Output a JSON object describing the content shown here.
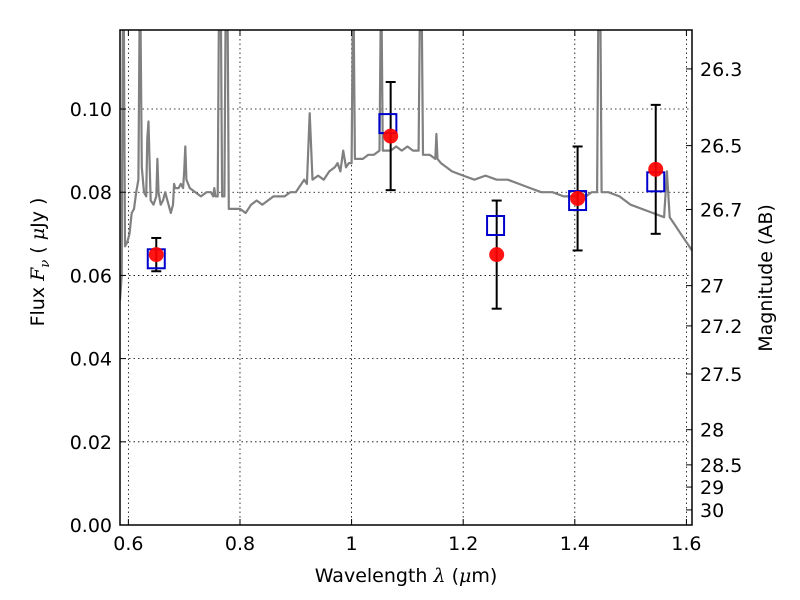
{
  "chart_data": {
    "type": "scatter",
    "xlabel_text": "Wavelength ",
    "xlabel_sym": "λ",
    "xlabel_unit_open": " (",
    "xlabel_unit_mu": "μ",
    "xlabel_unit_rest": "m)",
    "ylabel_text": "Flux ",
    "ylabel_sym": "F",
    "ylabel_sub": "ν",
    "ylabel_unit_open": " ( ",
    "ylabel_unit_mu": "μ",
    "ylabel_unit_rest": "Jy )",
    "y2label": "Magnitude (AB)",
    "xlim": [
      0.585,
      1.61
    ],
    "ylim": [
      0.0,
      0.119
    ],
    "grid": true,
    "x_ticks": [
      {
        "v": 0.6,
        "label": "0.6"
      },
      {
        "v": 0.8,
        "label": "0.8"
      },
      {
        "v": 1.0,
        "label": "1"
      },
      {
        "v": 1.2,
        "label": "1.2"
      },
      {
        "v": 1.4,
        "label": "1.4"
      },
      {
        "v": 1.6,
        "label": "1.6"
      }
    ],
    "y_ticks": [
      {
        "v": 0.0,
        "label": "0.00"
      },
      {
        "v": 0.02,
        "label": "0.02"
      },
      {
        "v": 0.04,
        "label": "0.04"
      },
      {
        "v": 0.06,
        "label": "0.06"
      },
      {
        "v": 0.08,
        "label": "0.08"
      },
      {
        "v": 0.1,
        "label": "0.10"
      }
    ],
    "y2_ticks": [
      {
        "label": "26.3"
      },
      {
        "label": "26.5"
      },
      {
        "label": "26.7"
      },
      {
        "label": "27"
      },
      {
        "label": "27.2"
      },
      {
        "label": "27.5"
      },
      {
        "label": "28"
      },
      {
        "label": "28.5"
      },
      {
        "label": "29"
      },
      {
        "label": "30"
      }
    ],
    "observed": {
      "color": "#ff0000",
      "points": [
        {
          "x": 0.65,
          "y": 0.065,
          "err": 0.004
        },
        {
          "x": 1.07,
          "y": 0.0935,
          "err": 0.013
        },
        {
          "x": 1.26,
          "y": 0.065,
          "err": 0.013
        },
        {
          "x": 1.405,
          "y": 0.0785,
          "err": 0.0125
        },
        {
          "x": 1.545,
          "y": 0.0855,
          "err": 0.0155
        }
      ]
    },
    "model": {
      "color": "#0000cc",
      "points": [
        {
          "x": 0.65,
          "y": 0.064
        },
        {
          "x": 1.065,
          "y": 0.0965
        },
        {
          "x": 1.258,
          "y": 0.072
        },
        {
          "x": 1.405,
          "y": 0.078
        },
        {
          "x": 1.545,
          "y": 0.0825
        }
      ]
    },
    "spectrum": {
      "color": "#808080",
      "points": [
        [
          0.585,
          0.054
        ],
        [
          0.588,
          0.06
        ],
        [
          0.59,
          0.119
        ],
        [
          0.592,
          0.119
        ],
        [
          0.594,
          0.067
        ],
        [
          0.598,
          0.068
        ],
        [
          0.602,
          0.07
        ],
        [
          0.606,
          0.075
        ],
        [
          0.61,
          0.076
        ],
        [
          0.614,
          0.08
        ],
        [
          0.618,
          0.083
        ],
        [
          0.62,
          0.119
        ],
        [
          0.622,
          0.119
        ],
        [
          0.624,
          0.086
        ],
        [
          0.628,
          0.08
        ],
        [
          0.632,
          0.079
        ],
        [
          0.634,
          0.093
        ],
        [
          0.636,
          0.097
        ],
        [
          0.638,
          0.087
        ],
        [
          0.64,
          0.078
        ],
        [
          0.645,
          0.077
        ],
        [
          0.65,
          0.079
        ],
        [
          0.652,
          0.088
        ],
        [
          0.654,
          0.08
        ],
        [
          0.658,
          0.077
        ],
        [
          0.662,
          0.078
        ],
        [
          0.666,
          0.08
        ],
        [
          0.67,
          0.078
        ],
        [
          0.676,
          0.075
        ],
        [
          0.68,
          0.077
        ],
        [
          0.682,
          0.082
        ],
        [
          0.684,
          0.081
        ],
        [
          0.69,
          0.081
        ],
        [
          0.694,
          0.082
        ],
        [
          0.698,
          0.081
        ],
        [
          0.7,
          0.085
        ],
        [
          0.702,
          0.091
        ],
        [
          0.704,
          0.083
        ],
        [
          0.71,
          0.081
        ],
        [
          0.72,
          0.08
        ],
        [
          0.73,
          0.079
        ],
        [
          0.74,
          0.08
        ],
        [
          0.748,
          0.08
        ],
        [
          0.752,
          0.079
        ],
        [
          0.754,
          0.081
        ],
        [
          0.756,
          0.079
        ],
        [
          0.76,
          0.079
        ],
        [
          0.762,
          0.119
        ],
        [
          0.764,
          0.119
        ],
        [
          0.766,
          0.119
        ],
        [
          0.768,
          0.079
        ],
        [
          0.772,
          0.079
        ],
        [
          0.774,
          0.119
        ],
        [
          0.776,
          0.119
        ],
        [
          0.778,
          0.119
        ],
        [
          0.78,
          0.076
        ],
        [
          0.79,
          0.076
        ],
        [
          0.8,
          0.076
        ],
        [
          0.81,
          0.075
        ],
        [
          0.82,
          0.077
        ],
        [
          0.83,
          0.078
        ],
        [
          0.84,
          0.077
        ],
        [
          0.85,
          0.078
        ],
        [
          0.86,
          0.079
        ],
        [
          0.87,
          0.079
        ],
        [
          0.88,
          0.079
        ],
        [
          0.89,
          0.08
        ],
        [
          0.9,
          0.08
        ],
        [
          0.91,
          0.082
        ],
        [
          0.915,
          0.083
        ],
        [
          0.92,
          0.082
        ],
        [
          0.925,
          0.099
        ],
        [
          0.93,
          0.083
        ],
        [
          0.94,
          0.084
        ],
        [
          0.95,
          0.083
        ],
        [
          0.96,
          0.085
        ],
        [
          0.97,
          0.086
        ],
        [
          0.975,
          0.087
        ],
        [
          0.98,
          0.085
        ],
        [
          0.985,
          0.09
        ],
        [
          0.99,
          0.086
        ],
        [
          0.995,
          0.087
        ],
        [
          1.0,
          0.087
        ],
        [
          1.002,
          0.119
        ],
        [
          1.004,
          0.119
        ],
        [
          1.006,
          0.088
        ],
        [
          1.02,
          0.088
        ],
        [
          1.03,
          0.089
        ],
        [
          1.04,
          0.089
        ],
        [
          1.05,
          0.09
        ],
        [
          1.052,
          0.119
        ],
        [
          1.054,
          0.119
        ],
        [
          1.056,
          0.09
        ],
        [
          1.07,
          0.09
        ],
        [
          1.08,
          0.091
        ],
        [
          1.09,
          0.09
        ],
        [
          1.1,
          0.091
        ],
        [
          1.11,
          0.09
        ],
        [
          1.12,
          0.09
        ],
        [
          1.122,
          0.119
        ],
        [
          1.124,
          0.119
        ],
        [
          1.126,
          0.119
        ],
        [
          1.128,
          0.089
        ],
        [
          1.14,
          0.089
        ],
        [
          1.15,
          0.088
        ],
        [
          1.152,
          0.094
        ],
        [
          1.154,
          0.088
        ],
        [
          1.16,
          0.087
        ],
        [
          1.17,
          0.086
        ],
        [
          1.18,
          0.085
        ],
        [
          1.2,
          0.084
        ],
        [
          1.22,
          0.083
        ],
        [
          1.24,
          0.084
        ],
        [
          1.26,
          0.083
        ],
        [
          1.28,
          0.083
        ],
        [
          1.3,
          0.082
        ],
        [
          1.32,
          0.081
        ],
        [
          1.34,
          0.08
        ],
        [
          1.36,
          0.08
        ],
        [
          1.38,
          0.079
        ],
        [
          1.4,
          0.079
        ],
        [
          1.41,
          0.08
        ],
        [
          1.42,
          0.079
        ],
        [
          1.43,
          0.08
        ],
        [
          1.44,
          0.08
        ],
        [
          1.442,
          0.119
        ],
        [
          1.444,
          0.119
        ],
        [
          1.446,
          0.119
        ],
        [
          1.448,
          0.08
        ],
        [
          1.46,
          0.08
        ],
        [
          1.48,
          0.079
        ],
        [
          1.5,
          0.077
        ],
        [
          1.52,
          0.076
        ],
        [
          1.54,
          0.075
        ],
        [
          1.56,
          0.074
        ],
        [
          1.565,
          0.085
        ],
        [
          1.57,
          0.074
        ],
        [
          1.58,
          0.072
        ],
        [
          1.59,
          0.07
        ],
        [
          1.6,
          0.068
        ],
        [
          1.61,
          0.066
        ]
      ]
    }
  }
}
